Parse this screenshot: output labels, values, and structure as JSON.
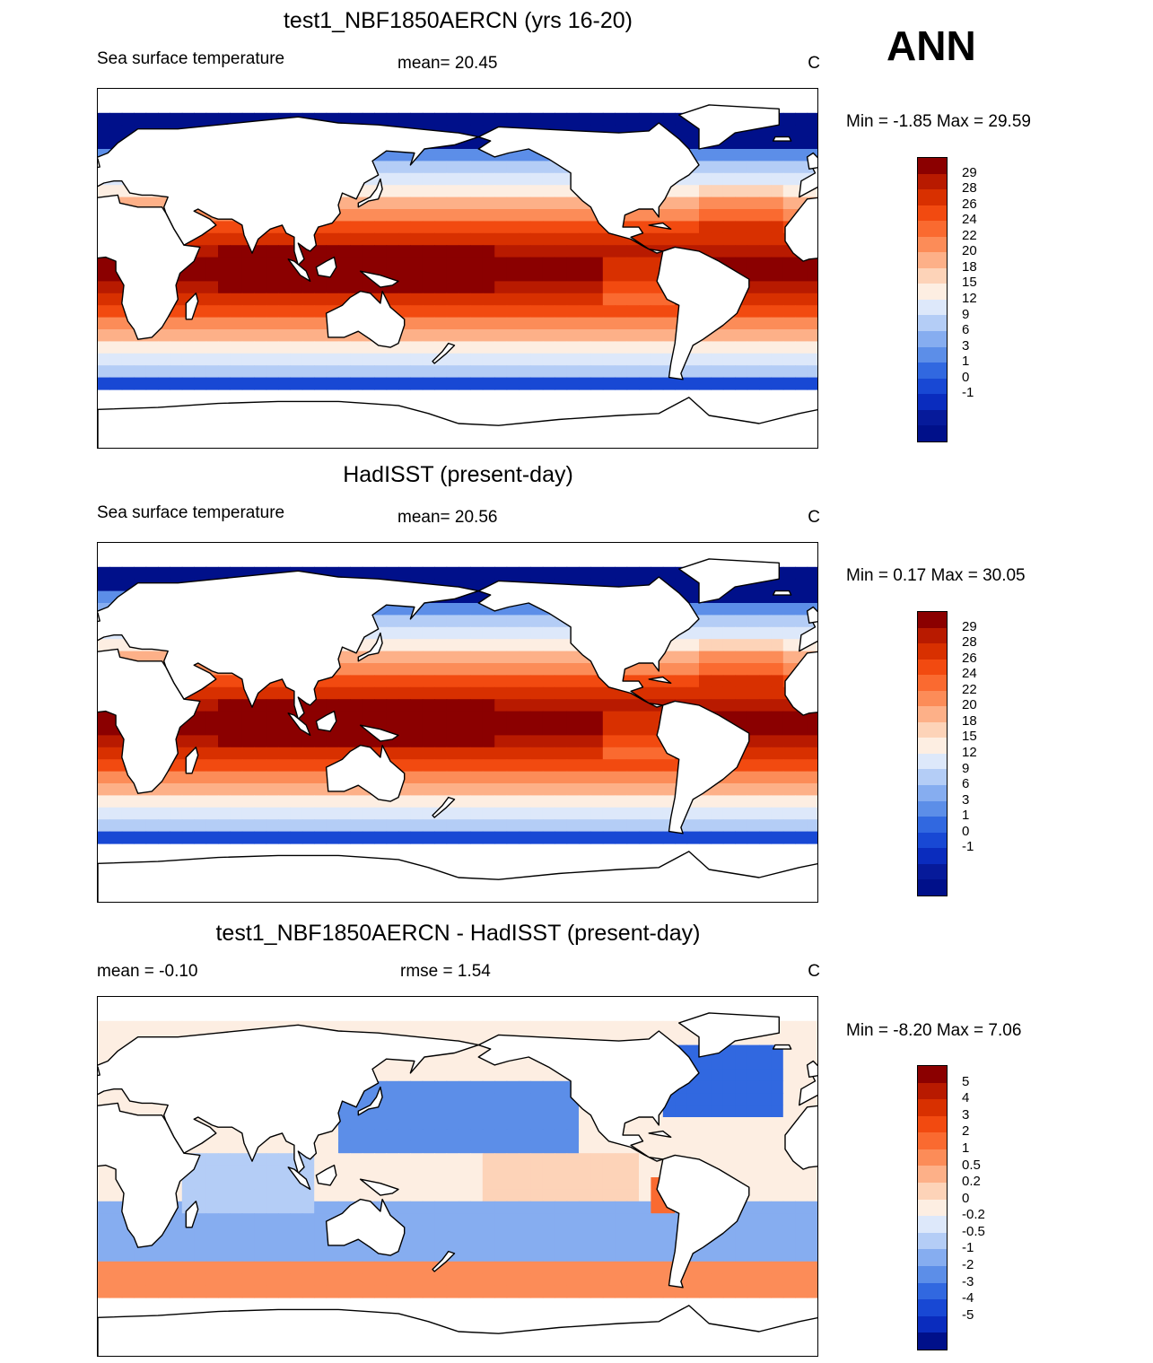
{
  "season": "ANN",
  "panels": [
    {
      "title": "test1_NBF1850AERCN (yrs 16-20)",
      "left_label": "Sea surface temperature",
      "center_label": "mean=  20.45",
      "units": "C",
      "minmax": "Min =  -1.85 Max =  29.59",
      "colorbar_labels": [
        "29",
        "28",
        "26",
        "24",
        "22",
        "20",
        "18",
        "15",
        "12",
        "9",
        "6",
        "3",
        "1",
        "0",
        "-1"
      ],
      "colorbar_colors": [
        "#8b0000",
        "#b81a00",
        "#d83000",
        "#f24a10",
        "#fa6a30",
        "#fc8c58",
        "#fdb088",
        "#fdd3b8",
        "#fdeee2",
        "#dde8fa",
        "#b4cdf6",
        "#86adf0",
        "#5c8ee8",
        "#3168e0",
        "#1848d4",
        "#0a2cbe",
        "#061a9a",
        "#00108a"
      ],
      "field": "sst"
    },
    {
      "title": "HadISST (present-day)",
      "left_label": "Sea surface temperature",
      "center_label": "mean=  20.56",
      "units": "C",
      "minmax": "Min =   0.17 Max =  30.05",
      "colorbar_labels": [
        "29",
        "28",
        "26",
        "24",
        "22",
        "20",
        "18",
        "15",
        "12",
        "9",
        "6",
        "3",
        "1",
        "0",
        "-1"
      ],
      "colorbar_colors": [
        "#8b0000",
        "#b81a00",
        "#d83000",
        "#f24a10",
        "#fa6a30",
        "#fc8c58",
        "#fdb088",
        "#fdd3b8",
        "#fdeee2",
        "#dde8fa",
        "#b4cdf6",
        "#86adf0",
        "#5c8ee8",
        "#3168e0",
        "#1848d4",
        "#0a2cbe",
        "#061a9a",
        "#00108a"
      ],
      "field": "sst"
    },
    {
      "title": "test1_NBF1850AERCN - HadISST (present-day)",
      "left_label": "mean =  -0.10",
      "center_label": "rmse =   1.54",
      "units": "C",
      "minmax": "Min =  -8.20 Max =   7.06",
      "colorbar_labels": [
        "5",
        "4",
        "3",
        "2",
        "1",
        "0.5",
        "0.2",
        "0",
        "-0.2",
        "-0.5",
        "-1",
        "-2",
        "-3",
        "-4",
        "-5"
      ],
      "colorbar_colors": [
        "#8b0000",
        "#b81a00",
        "#d83000",
        "#f24a10",
        "#fa6a30",
        "#fc8c58",
        "#fdb088",
        "#fdd3b8",
        "#fdeee2",
        "#dde8fa",
        "#b4cdf6",
        "#86adf0",
        "#5c8ee8",
        "#3168e0",
        "#1848d4",
        "#0a2cbe",
        "#00108a"
      ],
      "field": "diff"
    }
  ],
  "chart_data": [
    {
      "type": "heatmap",
      "title": "test1_NBF1850AERCN (yrs 16-20)",
      "variable": "Sea surface temperature",
      "units": "C",
      "mean": 20.45,
      "min": -1.85,
      "max": 29.59,
      "contour_levels": [
        -1,
        0,
        1,
        3,
        6,
        9,
        12,
        15,
        18,
        20,
        22,
        24,
        26,
        28,
        29
      ],
      "xrange_lon": [
        0,
        360
      ],
      "yrange_lat": [
        -90,
        90
      ]
    },
    {
      "type": "heatmap",
      "title": "HadISST (present-day)",
      "variable": "Sea surface temperature",
      "units": "C",
      "mean": 20.56,
      "min": 0.17,
      "max": 30.05,
      "contour_levels": [
        -1,
        0,
        1,
        3,
        6,
        9,
        12,
        15,
        18,
        20,
        22,
        24,
        26,
        28,
        29
      ],
      "xrange_lon": [
        0,
        360
      ],
      "yrange_lat": [
        -90,
        90
      ]
    },
    {
      "type": "heatmap",
      "title": "test1_NBF1850AERCN - HadISST (present-day)",
      "units": "C",
      "mean": -0.1,
      "rmse": 1.54,
      "min": -8.2,
      "max": 7.06,
      "contour_levels": [
        -5,
        -4,
        -3,
        -2,
        -1,
        -0.5,
        -0.2,
        0,
        0.2,
        0.5,
        1,
        2,
        3,
        4,
        5
      ],
      "xrange_lon": [
        0,
        360
      ],
      "yrange_lat": [
        -90,
        90
      ]
    }
  ]
}
